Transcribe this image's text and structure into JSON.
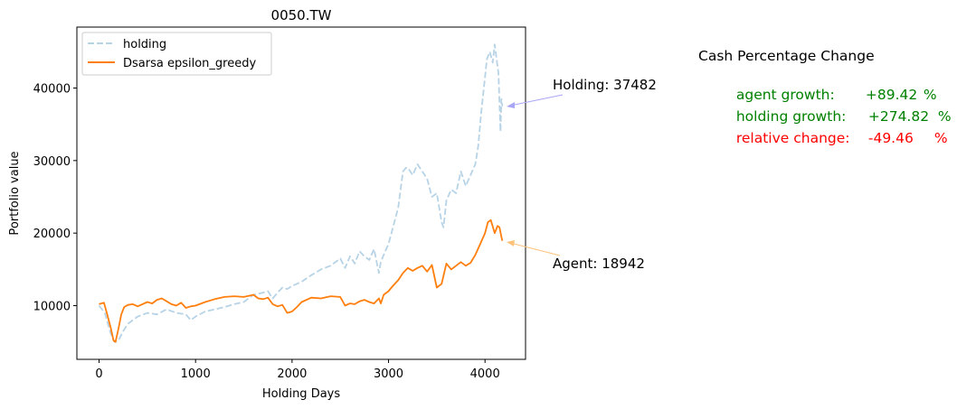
{
  "chart_data": {
    "type": "line",
    "title": "0050.TW",
    "xlabel": "Holding Days",
    "ylabel": "Portfolio value",
    "xlim": [
      -230,
      4420
    ],
    "ylim": [
      2600,
      48400
    ],
    "xticks": [
      0,
      1000,
      2000,
      3000,
      4000
    ],
    "yticks": [
      10000,
      20000,
      30000,
      40000
    ],
    "grid": false,
    "legend_position": "upper-left",
    "series": [
      {
        "name": "holding",
        "color": "#b7d3e6",
        "style": "dashed",
        "x": [
          0,
          60,
          120,
          160,
          200,
          250,
          300,
          400,
          500,
          600,
          700,
          800,
          900,
          950,
          1000,
          1100,
          1200,
          1300,
          1400,
          1500,
          1600,
          1700,
          1750,
          1800,
          1850,
          1900,
          1950,
          2000,
          2100,
          2200,
          2300,
          2400,
          2500,
          2550,
          2600,
          2650,
          2700,
          2750,
          2800,
          2850,
          2900,
          2920,
          2950,
          3000,
          3050,
          3100,
          3150,
          3180,
          3200,
          3250,
          3300,
          3350,
          3400,
          3450,
          3500,
          3550,
          3570,
          3600,
          3650,
          3700,
          3750,
          3800,
          3850,
          3900,
          3930,
          3960,
          4000,
          4020,
          4050,
          4080,
          4100,
          4120,
          4140,
          4160,
          4170,
          4180
        ],
        "y": [
          10000,
          9000,
          6200,
          5000,
          5200,
          6500,
          7500,
          8500,
          9000,
          8800,
          9500,
          9000,
          8800,
          8000,
          8500,
          9200,
          9500,
          9800,
          10200,
          10500,
          11500,
          11800,
          12000,
          11000,
          11800,
          12500,
          12300,
          12700,
          13300,
          14200,
          15000,
          15500,
          16500,
          15200,
          16800,
          15800,
          17500,
          16800,
          16300,
          17800,
          14500,
          16000,
          17000,
          18500,
          21000,
          23500,
          28500,
          29000,
          29000,
          28000,
          29500,
          28500,
          27500,
          25000,
          25500,
          21500,
          20800,
          24500,
          26000,
          25500,
          28500,
          26500,
          28000,
          29500,
          32000,
          36500,
          41500,
          44000,
          45000,
          43500,
          46000,
          44000,
          42000,
          34000,
          38500,
          37482
        ]
      },
      {
        "name": "Dsarsa epsilon_greedy",
        "color": "#ff7f0e",
        "style": "solid",
        "x": [
          0,
          50,
          80,
          120,
          150,
          170,
          200,
          230,
          260,
          300,
          350,
          400,
          500,
          550,
          600,
          650,
          700,
          750,
          800,
          850,
          900,
          950,
          1000,
          1100,
          1200,
          1300,
          1400,
          1500,
          1600,
          1650,
          1700,
          1750,
          1800,
          1850,
          1900,
          1950,
          2000,
          2050,
          2100,
          2200,
          2300,
          2400,
          2500,
          2550,
          2600,
          2650,
          2700,
          2750,
          2800,
          2850,
          2900,
          2920,
          2950,
          3000,
          3050,
          3100,
          3150,
          3200,
          3250,
          3300,
          3350,
          3400,
          3450,
          3500,
          3550,
          3600,
          3650,
          3700,
          3750,
          3800,
          3850,
          3900,
          3950,
          4000,
          4030,
          4060,
          4100,
          4130,
          4150,
          4170,
          4180
        ],
        "y": [
          10200,
          10400,
          9000,
          7000,
          5200,
          5000,
          6800,
          8800,
          9800,
          10100,
          10200,
          9900,
          10500,
          10300,
          10800,
          11000,
          10600,
          10200,
          10000,
          10400,
          9700,
          9900,
          10000,
          10500,
          10900,
          11200,
          11300,
          11200,
          11500,
          11000,
          10900,
          11100,
          10200,
          9900,
          10100,
          9000,
          9200,
          9800,
          10500,
          11100,
          11000,
          11300,
          11200,
          10000,
          10300,
          10200,
          10600,
          10800,
          10500,
          10300,
          11000,
          10300,
          11500,
          12000,
          12800,
          13500,
          14500,
          15200,
          14800,
          15200,
          15500,
          14700,
          15600,
          12500,
          13000,
          15800,
          15000,
          15500,
          16000,
          15500,
          15900,
          17000,
          18500,
          20000,
          21500,
          21800,
          20000,
          21000,
          20800,
          19500,
          18942
        ]
      }
    ],
    "annotations": [
      {
        "text": "Holding: 37482",
        "x": 4180,
        "y": 37482,
        "color": "#a8a5f5"
      },
      {
        "text": "Agent: 18942",
        "x": 4180,
        "y": 18942,
        "color": "#ffc27a"
      }
    ]
  },
  "info_panel": {
    "title": "Cash Percentage Change",
    "lines": [
      {
        "label": "agent growth:",
        "value": "+89.42",
        "unit": "%",
        "color": "#008000"
      },
      {
        "label": "holding growth:",
        "value": "+274.82",
        "unit": "%",
        "color": "#008000"
      },
      {
        "label": "relative change:",
        "value": "-49.46",
        "unit": "%",
        "color": "#ff0000"
      }
    ]
  }
}
